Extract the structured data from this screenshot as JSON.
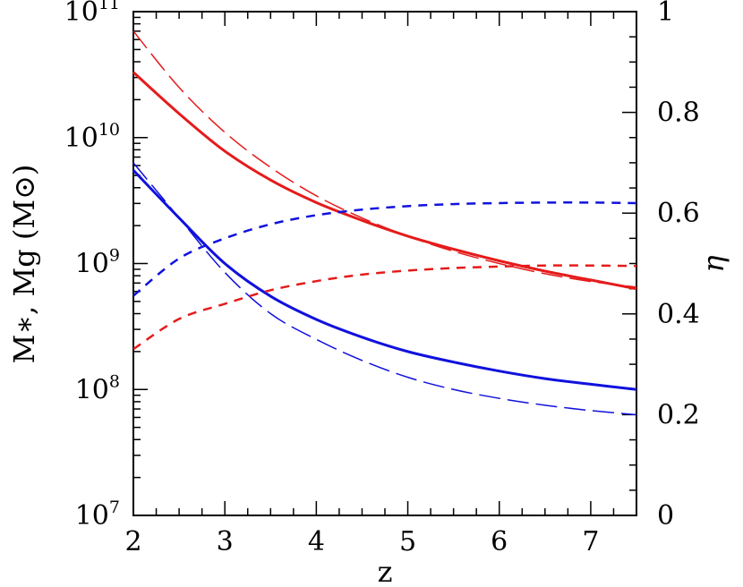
{
  "chart_data": {
    "type": "line",
    "xlabel": "z",
    "ylabel_left": "M∗, Mg (M⊙)",
    "ylabel_right": "η",
    "xlim": [
      2,
      7.5
    ],
    "ylim_left": [
      10000000,
      100000000000
    ],
    "yscale_left": "log",
    "ylim_right": [
      0,
      1
    ],
    "xticks": [
      2,
      3,
      4,
      5,
      6,
      7
    ],
    "xtick_labels": [
      "2",
      "3",
      "4",
      "5",
      "6",
      "7"
    ],
    "yticks_left": [
      {
        "base": "10",
        "exp": "7"
      },
      {
        "base": "10",
        "exp": "8"
      },
      {
        "base": "10",
        "exp": "9"
      },
      {
        "base": "10",
        "exp": "10"
      },
      {
        "base": "10",
        "exp": "11"
      }
    ],
    "yticks_right": [
      "0",
      "0.2",
      "0.4",
      "0.6",
      "0.8",
      "1"
    ],
    "grid": false,
    "series": [
      {
        "color": "#e51b1b",
        "style": "solid",
        "width": 3,
        "axis": "left",
        "x": [
          2,
          2.5,
          3,
          3.5,
          4,
          4.5,
          5,
          5.5,
          6,
          6.5,
          7,
          7.5
        ],
        "y": [
          33000000000,
          15500000000,
          7800000000,
          4600000000,
          3050000000,
          2200000000,
          1650000000,
          1300000000,
          1050000000,
          870000000,
          740000000,
          630000000
        ]
      },
      {
        "color": "#e51b1b",
        "style": "long-dash",
        "width": 1.5,
        "axis": "left",
        "x": [
          2,
          2.5,
          3,
          3.5,
          4,
          4.5,
          5,
          5.5,
          6,
          6.5,
          7,
          7.5
        ],
        "y": [
          70000000000,
          25000000000,
          11000000000,
          5800000000,
          3450000000,
          2300000000,
          1650000000,
          1250000000,
          1000000000,
          830000000,
          720000000,
          650000000
        ]
      },
      {
        "color": "#1111dd",
        "style": "solid",
        "width": 3,
        "axis": "left",
        "x": [
          2,
          2.5,
          3,
          3.5,
          4,
          4.5,
          5,
          5.5,
          6,
          6.5,
          7,
          7.5
        ],
        "y": [
          5500000000,
          2300000000,
          1000000000,
          550000000,
          360000000,
          260000000,
          200000000,
          165000000,
          140000000,
          122000000,
          110000000,
          100000000
        ]
      },
      {
        "color": "#1111dd",
        "style": "long-dash",
        "width": 1.5,
        "axis": "left",
        "x": [
          2,
          2.5,
          3,
          3.5,
          4,
          4.5,
          5,
          5.5,
          6,
          6.5,
          7,
          7.5
        ],
        "y": [
          6300000000,
          2300000000,
          850000000,
          400000000,
          250000000,
          170000000,
          125000000,
          100000000,
          85000000,
          75000000,
          68000000,
          63000000
        ]
      },
      {
        "color": "#1111dd",
        "style": "short-dash",
        "width": 2.5,
        "axis": "right",
        "x": [
          2,
          2.5,
          3,
          3.5,
          4,
          4.5,
          5,
          5.5,
          6,
          6.5,
          7,
          7.5
        ],
        "y": [
          0.436,
          0.51,
          0.55,
          0.578,
          0.596,
          0.607,
          0.614,
          0.618,
          0.62,
          0.621,
          0.621,
          0.62
        ]
      },
      {
        "color": "#e51b1b",
        "style": "short-dash",
        "width": 2.5,
        "axis": "right",
        "x": [
          2,
          2.5,
          3,
          3.5,
          4,
          4.5,
          5,
          5.5,
          6,
          6.5,
          7,
          7.5
        ],
        "y": [
          0.33,
          0.39,
          0.42,
          0.447,
          0.465,
          0.478,
          0.486,
          0.491,
          0.494,
          0.496,
          0.496,
          0.495
        ]
      }
    ]
  }
}
